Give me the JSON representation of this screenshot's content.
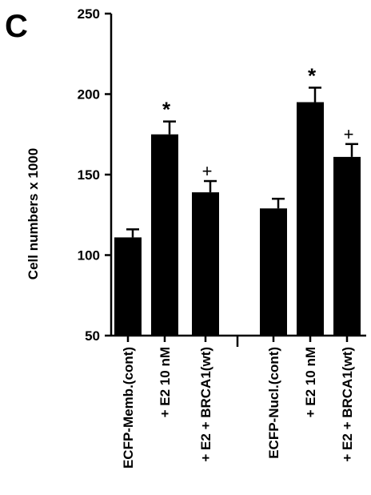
{
  "panel_label": "C",
  "chart_data": {
    "type": "bar",
    "title": "",
    "xlabel": "",
    "ylabel": "Cell numbers x 1000",
    "ylim": [
      50,
      250
    ],
    "yticks": [
      50,
      100,
      150,
      200,
      250
    ],
    "grid": false,
    "groups": [
      {
        "bars": [
          {
            "label": "ECFP-Memb.(cont)",
            "value": 111,
            "error": 5,
            "marker": ""
          },
          {
            "label": "+ E2 10 nM",
            "value": 175,
            "error": 8,
            "marker": "*"
          },
          {
            "label": "+ E2 + BRCA1(wt)",
            "value": 139,
            "error": 7,
            "marker": "+"
          }
        ]
      },
      {
        "bars": [
          {
            "label": "ECFP-Nucl.(cont)",
            "value": 129,
            "error": 6,
            "marker": ""
          },
          {
            "label": "+ E2 10 nM",
            "value": 195,
            "error": 9,
            "marker": "*"
          },
          {
            "label": "+ E2 + BRCA1(wt)",
            "value": 161,
            "error": 8,
            "marker": "+"
          }
        ]
      }
    ],
    "bar_color": "#000000"
  }
}
